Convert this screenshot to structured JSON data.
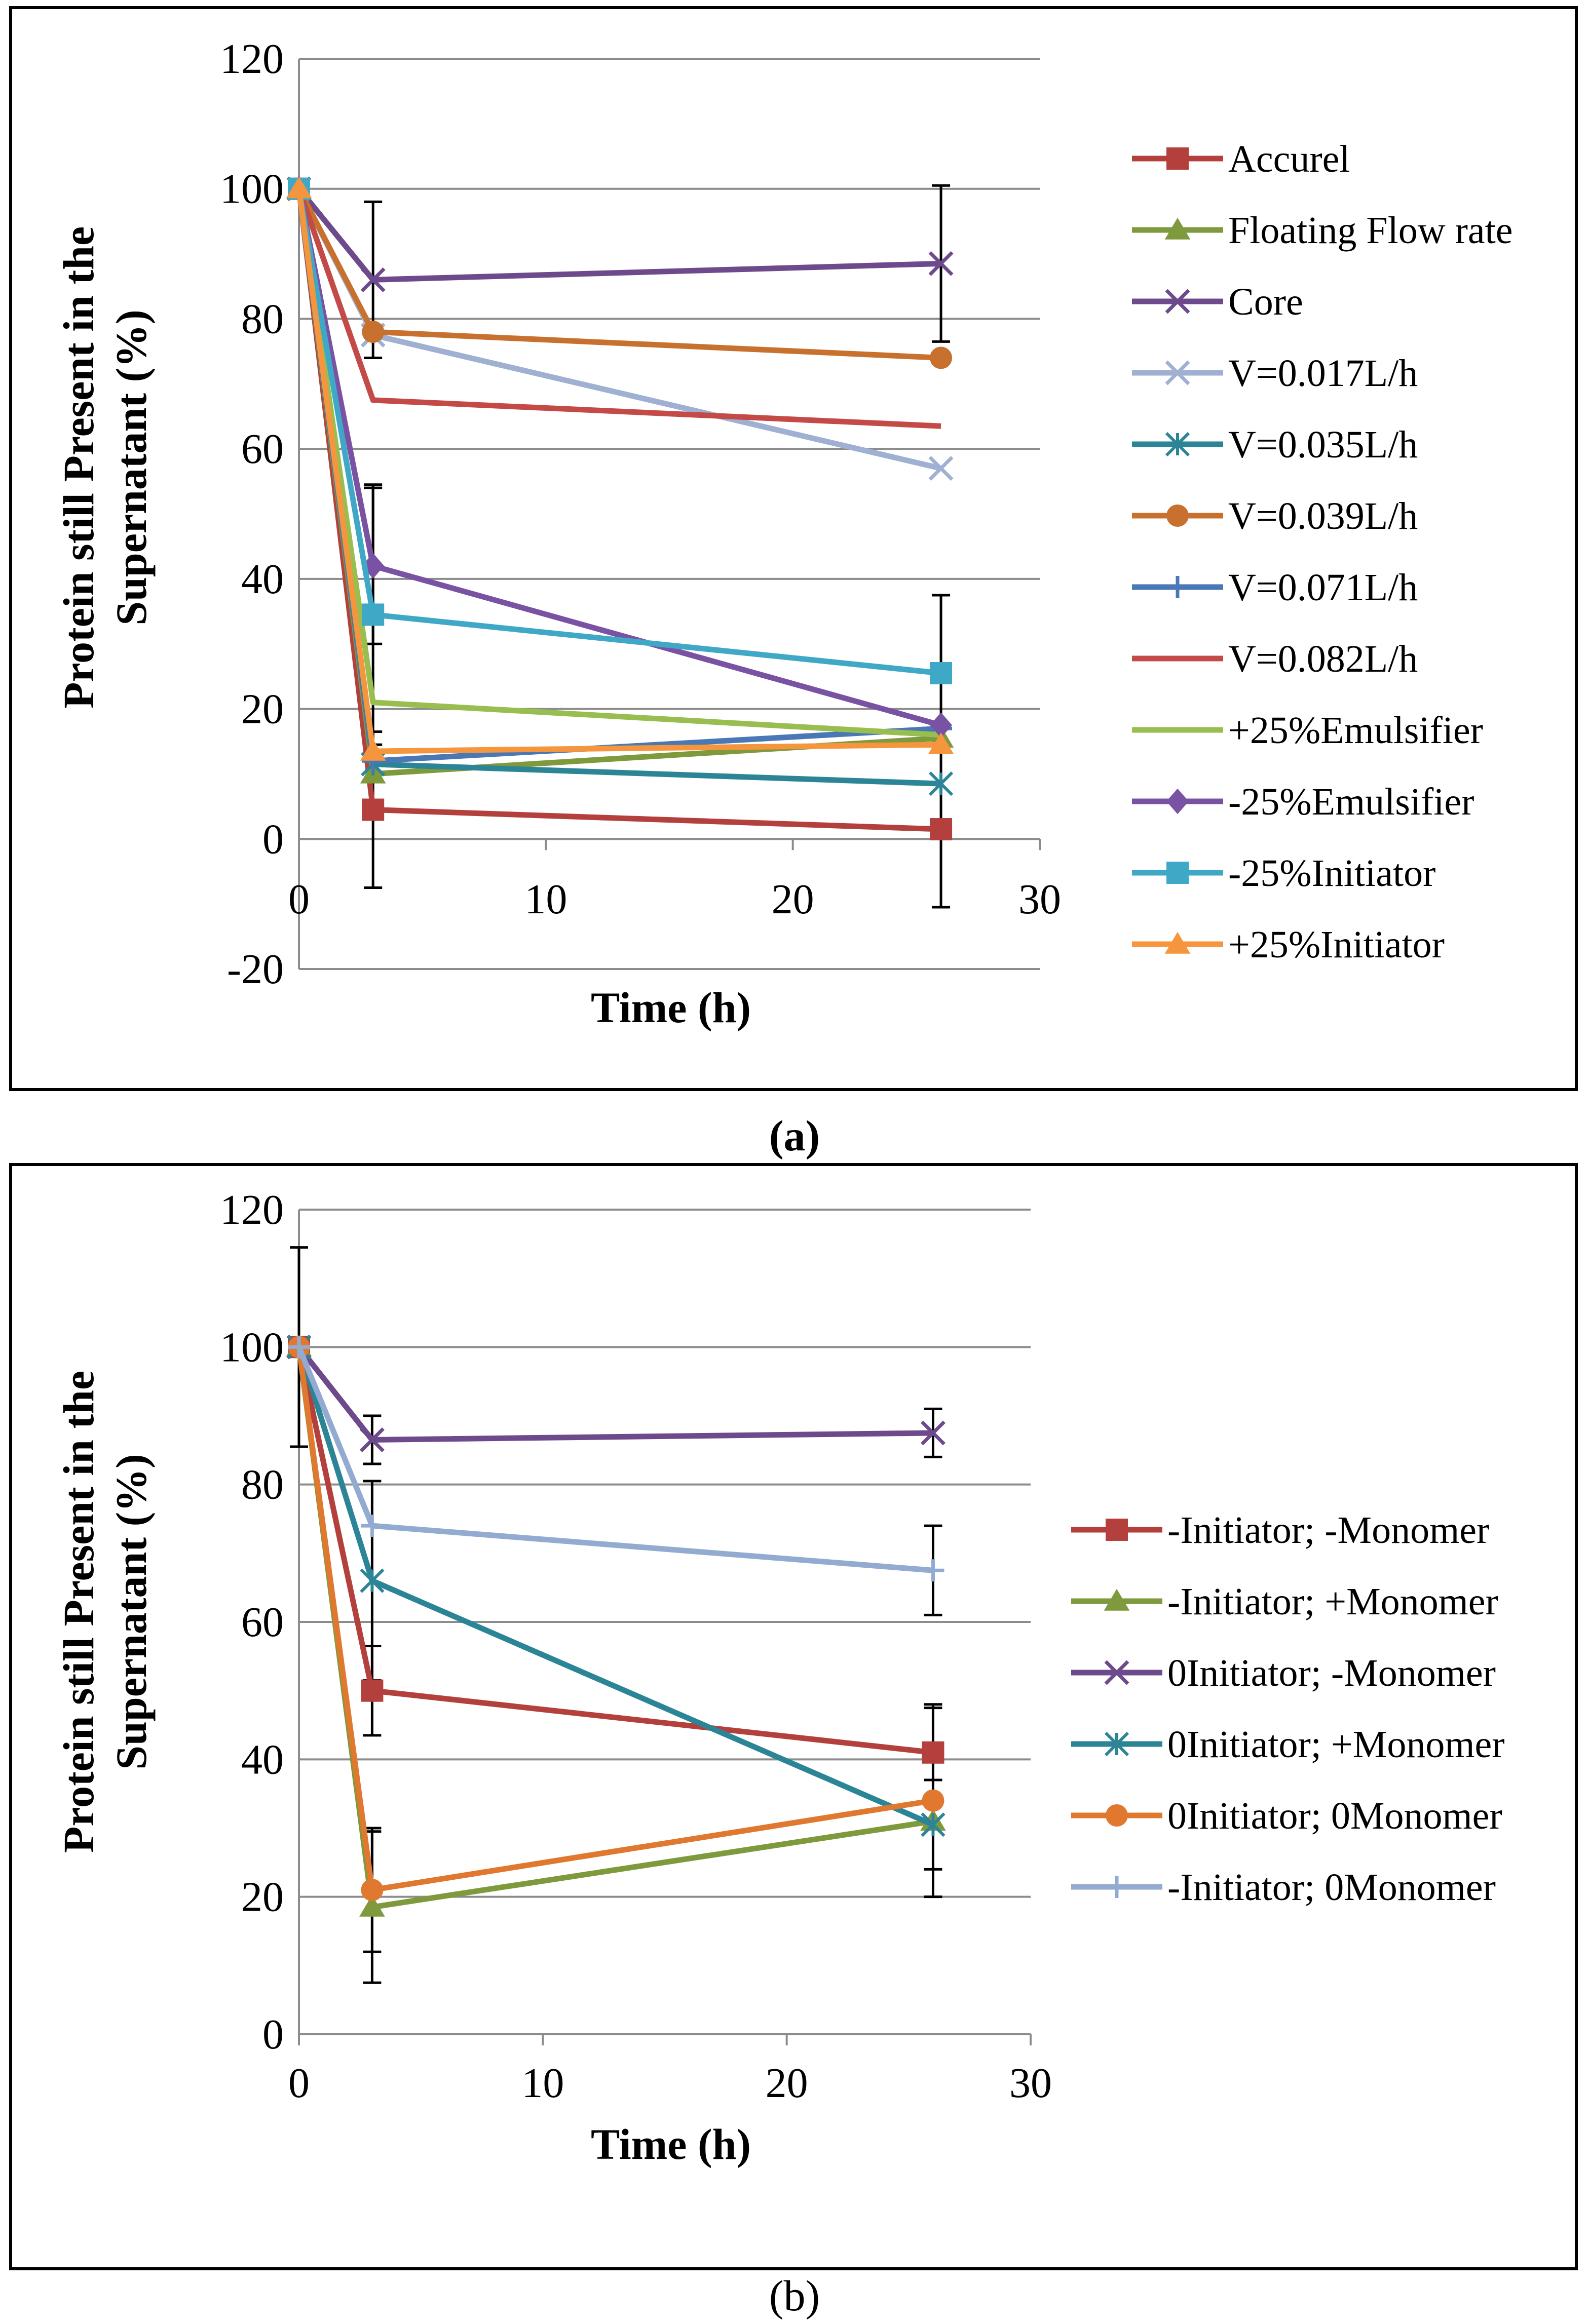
{
  "captions": {
    "a": "(a)",
    "b": "(b)"
  },
  "chart_data": [
    {
      "id": "a",
      "type": "line",
      "title": "",
      "xlabel": "Time (h)",
      "ylabel": [
        "Protein still Present in the",
        "Supernatant (%)"
      ],
      "xlim": [
        0,
        30
      ],
      "ylim": [
        -20,
        120
      ],
      "xticks": [
        0,
        10,
        20,
        30
      ],
      "yticks": [
        -20,
        0,
        20,
        40,
        60,
        80,
        100,
        120
      ],
      "grid": "horizontal",
      "legend": "right",
      "x": [
        0,
        3,
        26
      ],
      "series": [
        {
          "name": "Accurel",
          "values": [
            100,
            4.5,
            1.5
          ],
          "errors": [
            0,
            12,
            12
          ],
          "color": "#b3403c",
          "marker": "square"
        },
        {
          "name": "Floating Flow rate",
          "values": [
            100,
            10,
            15.5
          ],
          "errors": [
            0,
            0,
            0
          ],
          "color": "#7e9a3c",
          "marker": "triangle"
        },
        {
          "name": "Core",
          "values": [
            100,
            86,
            88.5
          ],
          "errors": [
            0,
            12,
            12
          ],
          "color": "#6d4a8c",
          "marker": "x"
        },
        {
          "name": "V=0.017L/h",
          "values": [
            100,
            77.5,
            57
          ],
          "errors": [
            0,
            0,
            0
          ],
          "color": "#9fb0d3",
          "marker": "x"
        },
        {
          "name": "V=0.035L/h",
          "values": [
            100,
            11.5,
            8.5
          ],
          "errors": [
            0,
            0,
            0
          ],
          "color": "#2c8596",
          "marker": "asterisk"
        },
        {
          "name": "V=0.039L/h",
          "values": [
            100,
            78,
            74
          ],
          "errors": [
            0,
            0,
            0
          ],
          "color": "#c8702d",
          "marker": "circle"
        },
        {
          "name": "V=0.071L/h",
          "values": [
            100,
            12,
            17
          ],
          "errors": [
            0,
            0,
            0
          ],
          "color": "#4a77b5",
          "marker": "plus"
        },
        {
          "name": "V=0.082L/h",
          "values": [
            100,
            67.5,
            63.5
          ],
          "errors": [
            0,
            0,
            0
          ],
          "color": "#c44a47",
          "marker": "none"
        },
        {
          "name": "+25%Emulsifier",
          "values": [
            100,
            21,
            16
          ],
          "errors": [
            0,
            0,
            0
          ],
          "color": "#97be4f",
          "marker": "none"
        },
        {
          "name": "-25%Emulsifier",
          "values": [
            100,
            42,
            17.5
          ],
          "errors": [
            0,
            12,
            0
          ],
          "color": "#7a52a4",
          "marker": "diamond"
        },
        {
          "name": "-25%Initiator",
          "values": [
            100,
            34.5,
            25.5
          ],
          "errors": [
            0,
            20,
            12
          ],
          "color": "#40a8c7",
          "marker": "square"
        },
        {
          "name": "+25%Initiator",
          "values": [
            100,
            13.5,
            14.5
          ],
          "errors": [
            0,
            0,
            0
          ],
          "color": "#f5963f",
          "marker": "triangle"
        }
      ]
    },
    {
      "id": "b",
      "type": "line",
      "title": "",
      "xlabel": "Time (h)",
      "ylabel": [
        "Protein still Present in the",
        "Supernatant (%)"
      ],
      "xlim": [
        0,
        30
      ],
      "ylim": [
        0,
        120
      ],
      "xticks": [
        0,
        10,
        20,
        30
      ],
      "yticks": [
        0,
        20,
        40,
        60,
        80,
        100,
        120
      ],
      "grid": "horizontal",
      "legend": "right",
      "x": [
        0,
        3,
        26
      ],
      "series": [
        {
          "name": "-Initiator; -Monomer",
          "values": [
            100,
            50,
            41
          ],
          "errors": [
            0,
            6.5,
            6.5
          ],
          "color": "#b3403c",
          "marker": "square"
        },
        {
          "name": "-Initiator; +Monomer",
          "values": [
            100,
            18.5,
            31
          ],
          "errors": [
            0,
            11,
            0
          ],
          "color": "#7e9a3c",
          "marker": "triangle"
        },
        {
          "name": "0Initiator; -Monomer",
          "values": [
            100,
            86.5,
            87.5
          ],
          "errors": [
            14.5,
            3.5,
            3.5
          ],
          "color": "#6d4a8c",
          "marker": "x"
        },
        {
          "name": "0Initiator; +Monomer",
          "values": [
            100,
            66,
            30.5
          ],
          "errors": [
            0,
            14.5,
            6.5
          ],
          "color": "#2c8596",
          "marker": "asterisk"
        },
        {
          "name": "0Initiator; 0Monomer",
          "values": [
            100,
            21,
            34
          ],
          "errors": [
            0,
            9,
            14
          ],
          "color": "#e0782f",
          "marker": "circle"
        },
        {
          "name": "-Initiator; 0Monomer",
          "values": [
            100,
            74,
            67.5
          ],
          "errors": [
            0,
            0,
            6.5
          ],
          "color": "#93abd1",
          "marker": "plus"
        }
      ]
    }
  ]
}
